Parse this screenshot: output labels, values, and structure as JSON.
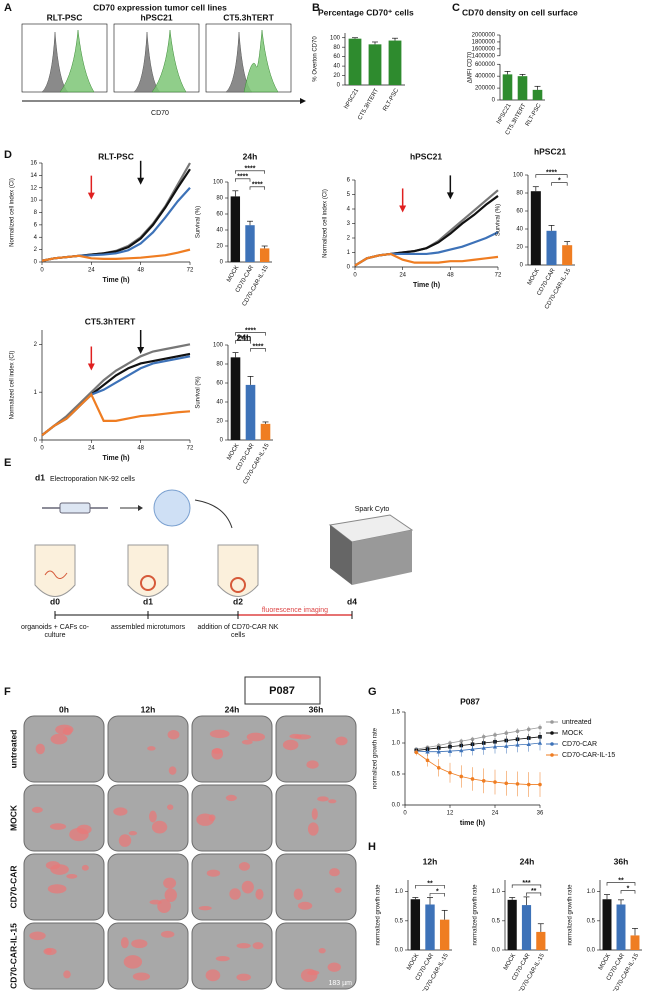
{
  "panel_letters": [
    "A",
    "B",
    "C",
    "D",
    "E",
    "F",
    "G",
    "H"
  ],
  "panel_a": {
    "title": "CD70 expression tumor cell lines",
    "samples": [
      "RLT-PSC",
      "hPSC21",
      "CT5.3hTERT"
    ],
    "xlabel": "CD70"
  },
  "panel_e": {
    "step_label": "d1",
    "step_text": "Electroporation NK-92 cells",
    "instrument": "Spark Cyto",
    "days": [
      "d0",
      "d1",
      "d2",
      "d4"
    ],
    "descriptions": [
      "organoids + CAFs co-culture",
      "assembled microtumors",
      "addition of CD70-CAR NK cells"
    ],
    "imaging": "fluorescence imaging"
  },
  "panel_f": {
    "sample": "P087",
    "columns": [
      "0h",
      "12h",
      "24h",
      "36h"
    ],
    "rows": [
      "untreated",
      "MOCK",
      "CD70-CAR",
      "CD70-CAR-IL-15"
    ],
    "scale_bar": "183 µm"
  },
  "chart_data": [
    {
      "type": "bar",
      "title": "Percentage CD70⁺ cells",
      "ylabel": "% Overton CD70",
      "categories": [
        "hPSC21",
        "CT5.3hTERT",
        "RLT-PSC"
      ],
      "values": [
        98,
        86,
        94
      ],
      "errors": [
        2,
        5,
        5
      ],
      "color": "#2e8b2e",
      "ylim": [
        0,
        110
      ],
      "yticks": [
        0,
        20,
        40,
        60,
        80,
        100
      ]
    },
    {
      "type": "bar",
      "title": "CD70 density on cell surface",
      "ylabel": "ΔMFI CD70",
      "categories": [
        "hPSC21",
        "CT5.3hTERT",
        "RLT-PSC"
      ],
      "values": [
        430000,
        400000,
        170000
      ],
      "errors": [
        50000,
        30000,
        60000
      ],
      "color": "#2e8b2e",
      "ylim": [
        0,
        2000000
      ],
      "ybreak": [
        600000,
        1400000
      ],
      "yticks": [
        0,
        200000,
        400000,
        600000,
        1400000,
        1600000,
        1800000,
        2000000
      ]
    },
    {
      "type": "line",
      "title": "RLT-PSC",
      "xlabel": "Time (h)",
      "ylabel": "Normalized cell index (CI)",
      "x": [
        0,
        6,
        12,
        18,
        24,
        30,
        36,
        42,
        48,
        54,
        60,
        66,
        72
      ],
      "xlim": [
        0,
        72
      ],
      "xticks": [
        0,
        24,
        48,
        72
      ],
      "ylim": [
        0,
        16
      ],
      "yticks": [
        0,
        2,
        4,
        6,
        8,
        10,
        12,
        14,
        16
      ],
      "series": [
        {
          "color": "#777777",
          "values": [
            0.2,
            0.6,
            0.8,
            1.0,
            1.2,
            1.4,
            1.8,
            2.6,
            4.0,
            6.2,
            9.0,
            12.5,
            16.0
          ]
        },
        {
          "color": "#111111",
          "values": [
            0.2,
            0.6,
            0.8,
            1.0,
            1.2,
            1.4,
            1.7,
            2.4,
            3.8,
            6.0,
            8.8,
            12.0,
            15.0
          ]
        },
        {
          "color": "#3d72b8",
          "values": [
            0.2,
            0.6,
            0.8,
            1.0,
            1.1,
            1.2,
            1.4,
            1.9,
            3.0,
            4.8,
            7.2,
            9.8,
            12.0
          ]
        },
        {
          "color": "#ef7d22",
          "values": [
            0.2,
            0.6,
            0.8,
            1.0,
            0.6,
            0.5,
            0.5,
            0.6,
            0.7,
            0.9,
            1.1,
            1.5,
            2.0
          ]
        }
      ],
      "arrows": [
        {
          "x": 24,
          "color": "#e02020"
        },
        {
          "x": 48,
          "color": "#111111"
        }
      ]
    },
    {
      "type": "bar",
      "title": "24h",
      "ylabel": "Survival (%)",
      "categories": [
        "MOCK",
        "CD70-CAR",
        "CD70-CAR-IL-15"
      ],
      "values": [
        82,
        46,
        17
      ],
      "errors": [
        7,
        5,
        3
      ],
      "colors": [
        "#111111",
        "#3d72b8",
        "#ef7d22"
      ],
      "ylim": [
        0,
        100
      ],
      "yticks": [
        0,
        20,
        40,
        60,
        80,
        100
      ],
      "brackets": [
        {
          "text": "****",
          "between": [
            0,
            2
          ]
        },
        {
          "text": "****",
          "between": [
            0,
            1
          ]
        },
        {
          "text": "****",
          "between": [
            1,
            2
          ]
        }
      ]
    },
    {
      "type": "line",
      "title": "hPSC21",
      "xlabel": "Time (h)",
      "ylabel": "Normalized cell index (CI)",
      "x": [
        0,
        6,
        12,
        18,
        24,
        30,
        36,
        42,
        48,
        54,
        60,
        66,
        72
      ],
      "xlim": [
        0,
        72
      ],
      "xticks": [
        0,
        24,
        48,
        72
      ],
      "ylim": [
        0,
        6
      ],
      "yticks": [
        0,
        1,
        2,
        3,
        4,
        5,
        6
      ],
      "series": [
        {
          "color": "#777777",
          "values": [
            0.1,
            0.6,
            0.8,
            0.9,
            1.0,
            1.1,
            1.3,
            1.8,
            2.5,
            3.2,
            3.9,
            4.6,
            5.3
          ]
        },
        {
          "color": "#111111",
          "values": [
            0.1,
            0.6,
            0.8,
            0.9,
            1.0,
            1.1,
            1.3,
            1.7,
            2.3,
            3.0,
            3.6,
            4.3,
            4.9
          ]
        },
        {
          "color": "#3d72b8",
          "values": [
            0.1,
            0.6,
            0.8,
            0.9,
            0.9,
            0.9,
            0.9,
            1.0,
            1.2,
            1.4,
            1.7,
            2.0,
            2.4
          ]
        },
        {
          "color": "#ef7d22",
          "values": [
            0.1,
            0.6,
            0.8,
            0.9,
            0.5,
            0.3,
            0.3,
            0.3,
            0.4,
            0.4,
            0.5,
            0.6,
            0.7
          ]
        }
      ],
      "arrows": [
        {
          "x": 24,
          "color": "#e02020"
        },
        {
          "x": 48,
          "color": "#111111"
        }
      ]
    },
    {
      "type": "bar",
      "title": "hPSC21",
      "ylabel": "Survival (%)",
      "categories": [
        "MOCK",
        "CD70-CAR",
        "CD70-CAR-IL-15"
      ],
      "values": [
        82,
        38,
        22
      ],
      "errors": [
        5,
        6,
        4
      ],
      "colors": [
        "#111111",
        "#3d72b8",
        "#ef7d22"
      ],
      "ylim": [
        0,
        100
      ],
      "yticks": [
        0,
        20,
        40,
        60,
        80,
        100
      ],
      "brackets": [
        {
          "text": "****",
          "between": [
            0,
            2
          ]
        },
        {
          "text": "*",
          "between": [
            1,
            2
          ]
        }
      ]
    },
    {
      "type": "line",
      "title": "CT5.3hTERT",
      "xlabel": "Time (h)",
      "ylabel": "Normalized cell index (CI)",
      "x": [
        0,
        6,
        12,
        18,
        24,
        30,
        36,
        42,
        48,
        54,
        60,
        66,
        72
      ],
      "xlim": [
        0,
        72
      ],
      "xticks": [
        0,
        24,
        48,
        72
      ],
      "ylim": [
        0,
        2.3
      ],
      "yticks": [
        0,
        1,
        2
      ],
      "series": [
        {
          "color": "#777777",
          "values": [
            0.1,
            0.3,
            0.5,
            0.75,
            1.0,
            1.25,
            1.45,
            1.6,
            1.75,
            1.85,
            1.9,
            1.95,
            2.0
          ]
        },
        {
          "color": "#111111",
          "values": [
            0.1,
            0.3,
            0.45,
            0.7,
            0.95,
            1.15,
            1.35,
            1.5,
            1.6,
            1.65,
            1.7,
            1.75,
            1.8
          ]
        },
        {
          "color": "#3d72b8",
          "values": [
            0.1,
            0.3,
            0.45,
            0.7,
            0.95,
            1.05,
            1.2,
            1.35,
            1.5,
            1.6,
            1.65,
            1.7,
            1.75
          ]
        },
        {
          "color": "#ef7d22",
          "values": [
            0.1,
            0.3,
            0.45,
            0.7,
            0.95,
            0.4,
            0.4,
            0.45,
            0.5,
            0.52,
            0.55,
            0.58,
            0.6
          ]
        }
      ],
      "arrows": [
        {
          "x": 24,
          "color": "#e02020"
        },
        {
          "x": 48,
          "color": "#111111"
        }
      ]
    },
    {
      "type": "bar",
      "title": "24h",
      "ylabel": "Survival (%)",
      "categories": [
        "MOCK",
        "CD70-CAR",
        "CD70-CAR-IL-15"
      ],
      "values": [
        87,
        58,
        17
      ],
      "errors": [
        5,
        9,
        2
      ],
      "colors": [
        "#111111",
        "#3d72b8",
        "#ef7d22"
      ],
      "ylim": [
        0,
        100
      ],
      "yticks": [
        0,
        20,
        40,
        60,
        80,
        100
      ],
      "brackets": [
        {
          "text": "****",
          "between": [
            0,
            2
          ]
        },
        {
          "text": "****",
          "between": [
            0,
            1
          ]
        },
        {
          "text": "****",
          "between": [
            1,
            2
          ]
        }
      ]
    },
    {
      "type": "line",
      "title": "P087",
      "xlabel": "time (h)",
      "ylabel": "normalized growth rate",
      "x": [
        3,
        6,
        9,
        12,
        15,
        18,
        21,
        24,
        27,
        30,
        33,
        36
      ],
      "xlim": [
        0,
        36
      ],
      "xticks": [
        0,
        12,
        24,
        36
      ],
      "ylim": [
        0,
        1.5
      ],
      "yticks": [
        {
          "value": 0,
          "label": "0.0"
        },
        {
          "value": 0.5,
          "label": "0.5"
        },
        {
          "value": 1,
          "label": "1.0"
        },
        {
          "value": 1.5,
          "label": "1.5"
        }
      ],
      "legend": "right",
      "series": [
        {
          "name": "untreated",
          "color": "#9a9a9a",
          "marker": "circle",
          "values": [
            0.9,
            0.93,
            0.96,
            1.0,
            1.03,
            1.06,
            1.1,
            1.13,
            1.16,
            1.19,
            1.22,
            1.25
          ],
          "errors": [
            0.03,
            0.03,
            0.04,
            0.04,
            0.04,
            0.04,
            0.05,
            0.05,
            0.05,
            0.05,
            0.05,
            0.05
          ]
        },
        {
          "name": "MOCK",
          "color": "#111111",
          "marker": "square",
          "values": [
            0.88,
            0.9,
            0.92,
            0.94,
            0.96,
            0.98,
            1.0,
            1.02,
            1.04,
            1.06,
            1.08,
            1.1
          ],
          "errors": [
            0.03,
            0.04,
            0.04,
            0.05,
            0.05,
            0.06,
            0.06,
            0.06,
            0.07,
            0.07,
            0.07,
            0.08
          ]
        },
        {
          "name": "CD70-CAR",
          "color": "#3d72b8",
          "marker": "triangle",
          "values": [
            0.87,
            0.86,
            0.86,
            0.87,
            0.88,
            0.9,
            0.92,
            0.94,
            0.95,
            0.97,
            0.98,
            1.0
          ],
          "errors": [
            0.05,
            0.07,
            0.08,
            0.09,
            0.1,
            0.1,
            0.11,
            0.11,
            0.12,
            0.12,
            0.12,
            0.12
          ]
        },
        {
          "name": "CD70-CAR-IL-15",
          "color": "#ef7d22",
          "marker": "circle",
          "values": [
            0.85,
            0.72,
            0.6,
            0.52,
            0.46,
            0.42,
            0.39,
            0.37,
            0.35,
            0.34,
            0.33,
            0.33
          ],
          "errors": [
            0.05,
            0.1,
            0.14,
            0.16,
            0.18,
            0.19,
            0.2,
            0.2,
            0.2,
            0.2,
            0.2,
            0.2
          ]
        }
      ]
    },
    {
      "type": "bar",
      "title": "12h",
      "ylabel": "normalized growth rate",
      "categories": [
        "MOCK",
        "CD70-CAR",
        "CD70-CAR-IL-15"
      ],
      "values": [
        0.87,
        0.78,
        0.52
      ],
      "errors": [
        0.03,
        0.12,
        0.16
      ],
      "colors": [
        "#111111",
        "#3d72b8",
        "#ef7d22"
      ],
      "ylim": [
        0,
        1.2
      ],
      "yticks": [
        {
          "value": 0,
          "label": "0.0"
        },
        {
          "value": 0.5,
          "label": "0.5"
        },
        {
          "value": 1,
          "label": "1.0"
        }
      ],
      "brackets": [
        {
          "text": "**",
          "between": [
            0,
            2
          ]
        },
        {
          "text": "*",
          "between": [
            1,
            2
          ]
        }
      ]
    },
    {
      "type": "bar",
      "title": "24h",
      "ylabel": "normalized growth rate",
      "categories": [
        "MOCK",
        "CD70-CAR",
        "CD70-CAR-IL-15"
      ],
      "values": [
        0.86,
        0.77,
        0.31
      ],
      "errors": [
        0.04,
        0.14,
        0.14
      ],
      "colors": [
        "#111111",
        "#3d72b8",
        "#ef7d22"
      ],
      "ylim": [
        0,
        1.2
      ],
      "yticks": [
        {
          "value": 0,
          "label": "0.0"
        },
        {
          "value": 0.5,
          "label": "0.5"
        },
        {
          "value": 1,
          "label": "1.0"
        }
      ],
      "brackets": [
        {
          "text": "***",
          "between": [
            0,
            2
          ]
        },
        {
          "text": "**",
          "between": [
            1,
            2
          ]
        }
      ]
    },
    {
      "type": "bar",
      "title": "36h",
      "ylabel": "normalized growth rate",
      "categories": [
        "MOCK",
        "CD70-CAR",
        "CD70-CAR-IL-15"
      ],
      "values": [
        0.87,
        0.78,
        0.25
      ],
      "errors": [
        0.08,
        0.08,
        0.12
      ],
      "colors": [
        "#111111",
        "#3d72b8",
        "#ef7d22"
      ],
      "ylim": [
        0,
        1.2
      ],
      "yticks": [
        {
          "value": 0,
          "label": "0.0"
        },
        {
          "value": 0.5,
          "label": "0.5"
        },
        {
          "value": 1,
          "label": "1.0"
        }
      ],
      "brackets": [
        {
          "text": "**",
          "between": [
            0,
            2
          ]
        },
        {
          "text": "*",
          "between": [
            1,
            2
          ]
        }
      ]
    }
  ]
}
